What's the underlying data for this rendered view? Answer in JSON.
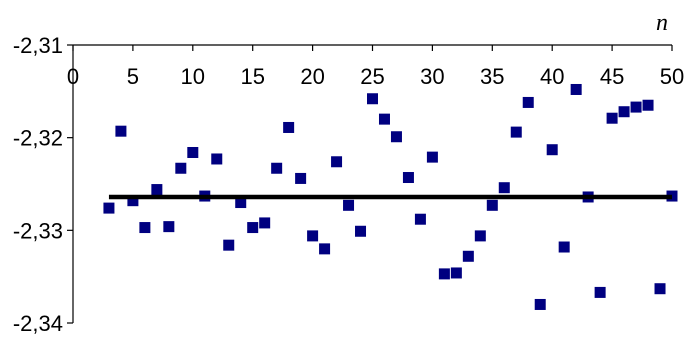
{
  "chart_data": {
    "type": "scatter",
    "title": "",
    "xlabel": "n",
    "ylabel": "",
    "xlim": [
      0,
      50
    ],
    "ylim": [
      -2.34,
      -2.31
    ],
    "x_ticks": [
      0,
      5,
      10,
      15,
      20,
      25,
      30,
      35,
      40,
      45,
      50
    ],
    "x_tick_labels": [
      "0",
      "5",
      "10",
      "15",
      "20",
      "25",
      "30",
      "35",
      "40",
      "45",
      "50"
    ],
    "y_ticks": [
      -2.31,
      -2.32,
      -2.33,
      -2.34
    ],
    "y_tick_labels": [
      "-2,31",
      "-2,32",
      "-2,33",
      "-2,34"
    ],
    "x_axis_position": "top",
    "grid": false,
    "legend": false,
    "marker_color": "#000080",
    "line_color": "#000000",
    "reference_line": {
      "y": -2.3264,
      "x_from": 3,
      "x_to": 50
    },
    "series": [
      {
        "x": [
          3,
          4,
          5,
          6,
          7,
          8,
          9,
          10,
          11,
          12,
          13,
          14,
          15,
          16,
          17,
          18,
          19,
          20,
          21,
          22,
          23,
          24,
          25,
          26,
          27,
          28,
          29,
          30,
          31,
          32,
          33,
          34,
          35,
          36,
          37,
          38,
          39,
          40,
          41,
          42,
          43,
          44,
          45,
          46,
          47,
          48,
          49,
          50
        ],
        "y": [
          -2.3276,
          -2.3193,
          -2.3268,
          -2.3297,
          -2.3256,
          -2.3296,
          -2.3233,
          -2.3216,
          -2.3263,
          -2.3223,
          -2.3316,
          -2.327,
          -2.3297,
          -2.3292,
          -2.3233,
          -2.3189,
          -2.3244,
          -2.3306,
          -2.332,
          -2.3226,
          -2.3273,
          -2.3301,
          -2.3158,
          -2.318,
          -2.3199,
          -2.3243,
          -2.3288,
          -2.3221,
          -2.3347,
          -2.3346,
          -2.3328,
          -2.3306,
          -2.3273,
          -2.3254,
          -2.3194,
          -2.3162,
          -2.338,
          -2.3213,
          -2.3318,
          -2.3148,
          -2.3264,
          -2.3367,
          -2.3179,
          -2.3172,
          -2.3167,
          -2.3165,
          -2.3363,
          -2.3263
        ]
      }
    ]
  }
}
